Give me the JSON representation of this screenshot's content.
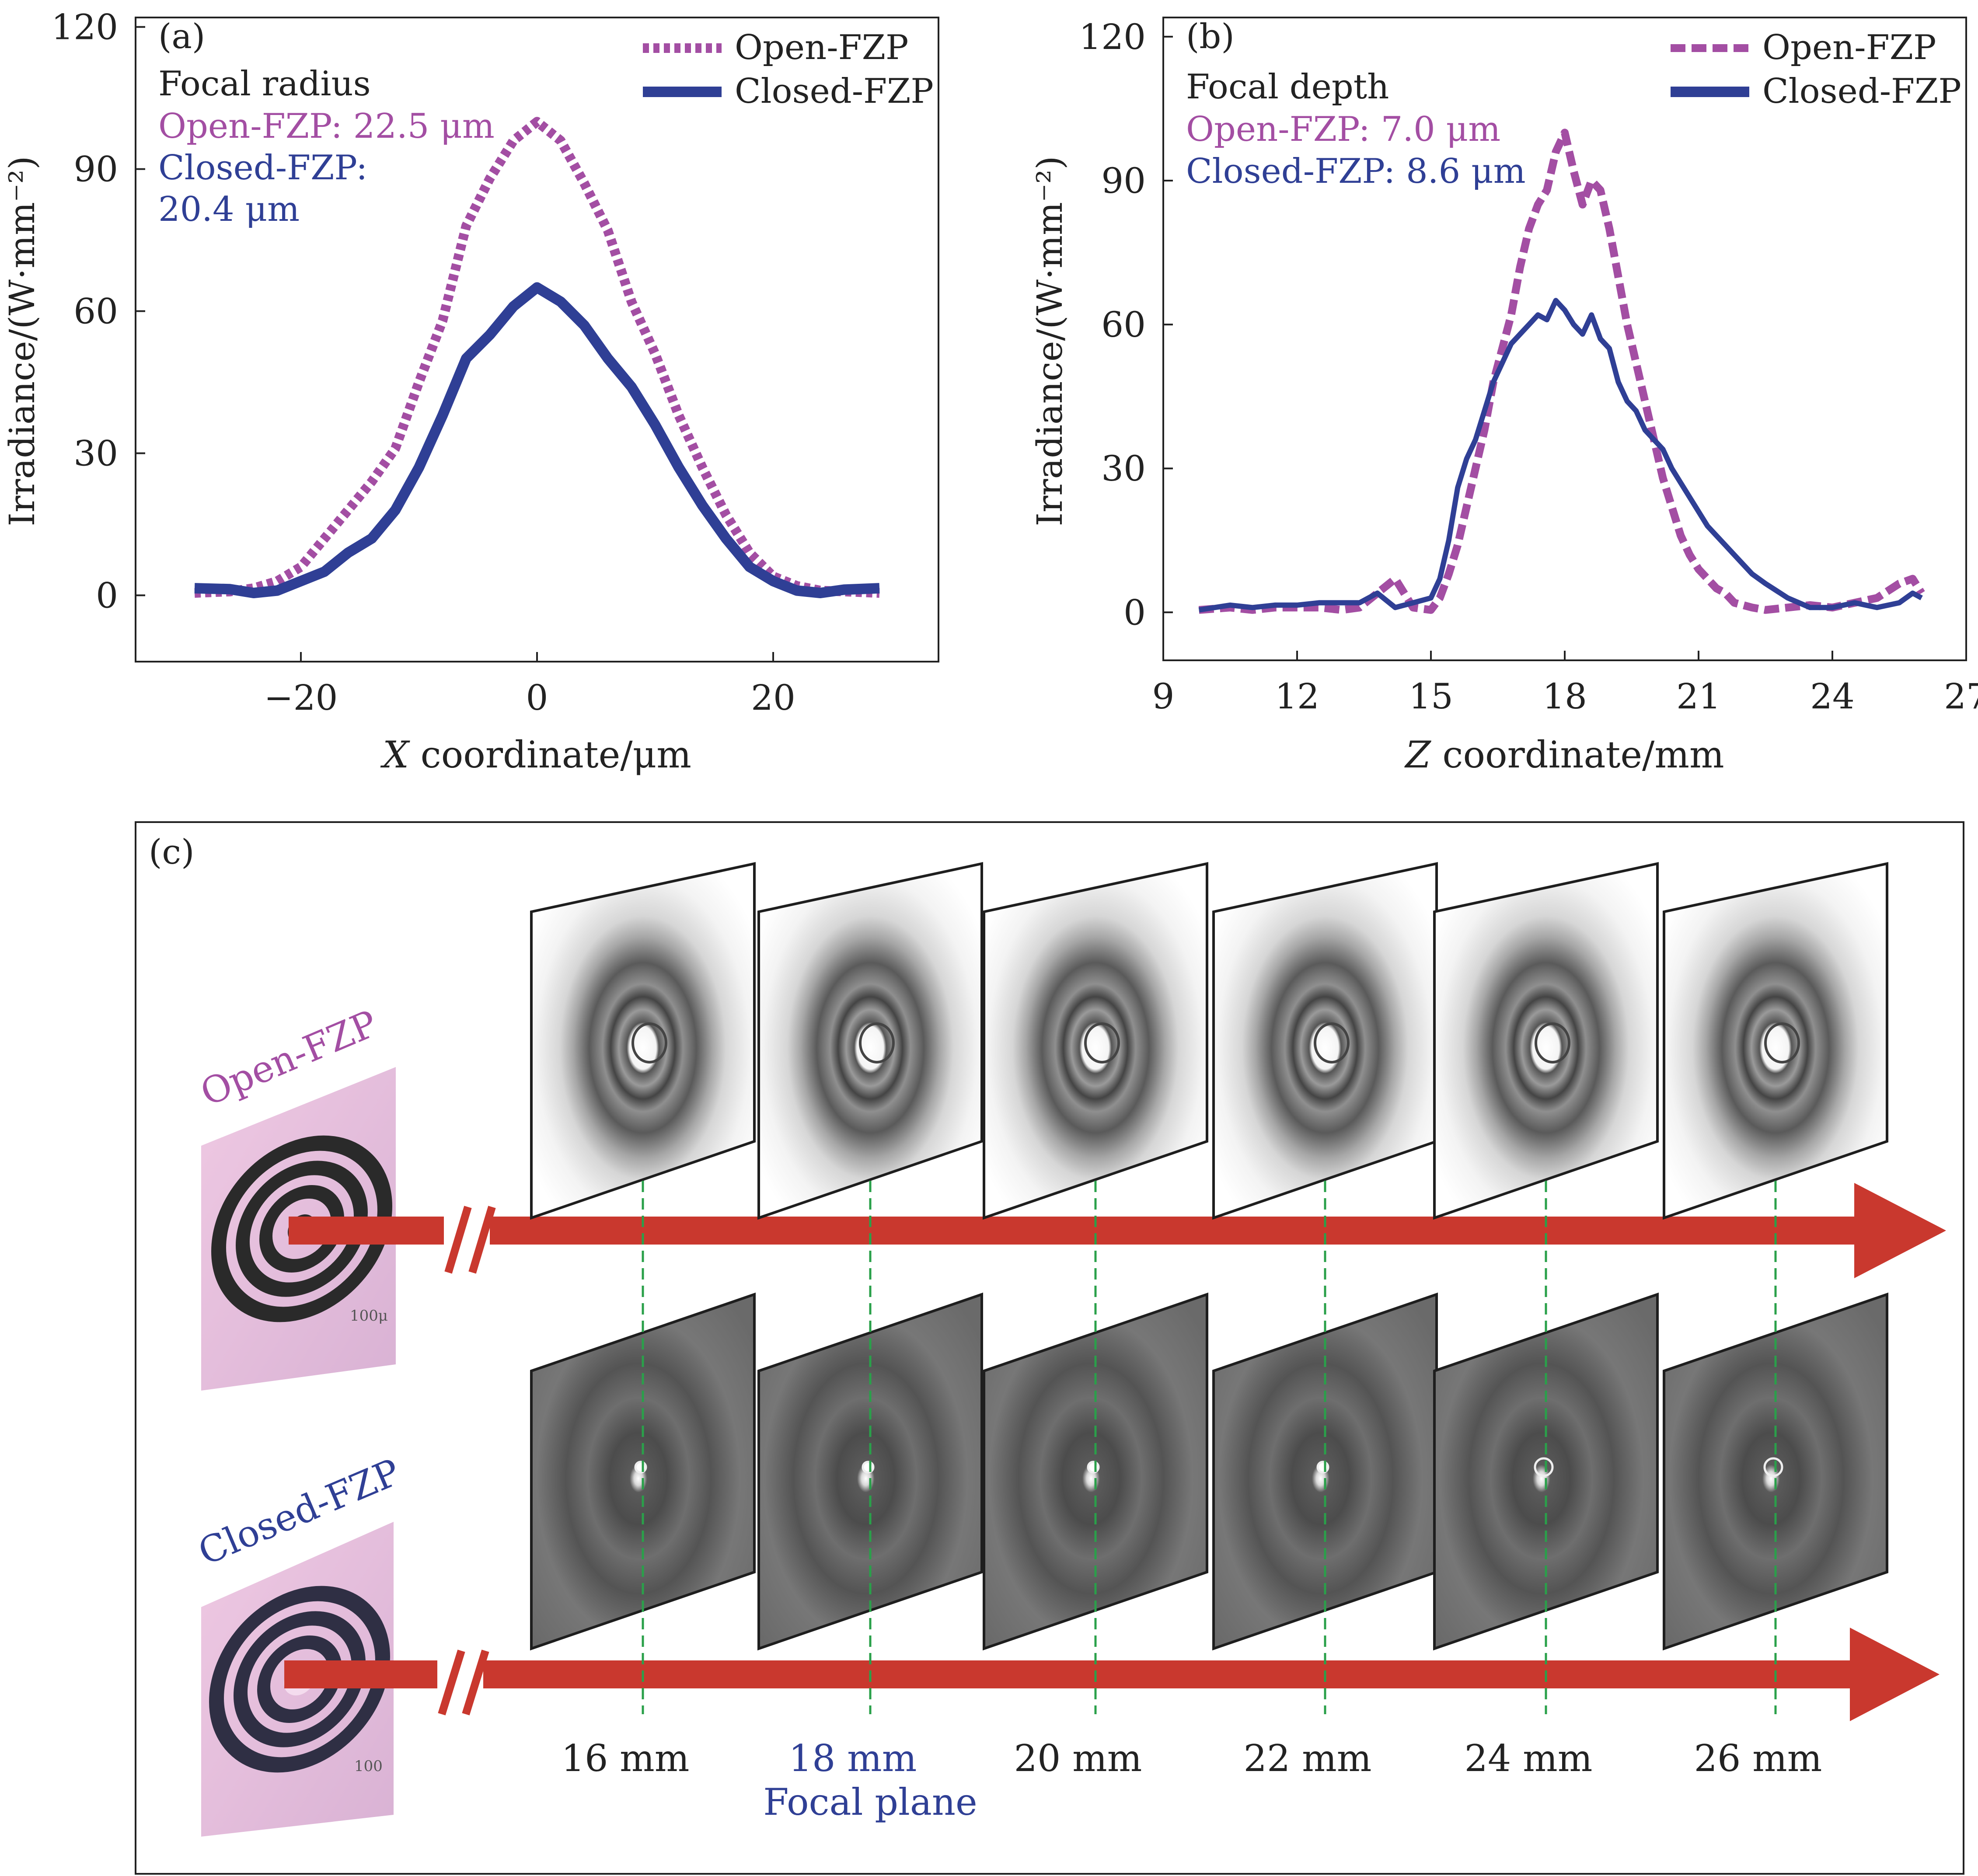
{
  "colors": {
    "open": "#a34ea3",
    "closed": "#2f3f95",
    "arrow": "#c9382e",
    "guide": "#2aa04a",
    "axis": "#222222",
    "focal_label": "#2f3f95"
  },
  "chart_data": [
    {
      "type": "line",
      "panel": "(a)",
      "title": "",
      "xlabel_italic": "X",
      "xlabel_rest": " coordinate/μm",
      "ylabel": "Irradiance/(W·mm⁻²)",
      "xlim": [
        -34,
        34
      ],
      "ylim": [
        -14,
        122
      ],
      "xticks": [
        -20,
        0,
        20
      ],
      "yticks": [
        0,
        30,
        60,
        90,
        120
      ],
      "legend": {
        "position": "top-right",
        "entries": [
          "Open-FZP",
          "Closed-FZP"
        ]
      },
      "annotation": {
        "heading": "Focal radius",
        "open_text": "Open-FZP: 22.5 μm",
        "closed_text_1": "Closed-FZP:",
        "closed_text_2": "20.4 μm"
      },
      "series": [
        {
          "name": "Open-FZP",
          "style": "dotted",
          "x": [
            -29,
            -26,
            -24,
            -22,
            -20,
            -18,
            -16,
            -14,
            -12,
            -10,
            -8,
            -6,
            -4,
            -2,
            0,
            2,
            4,
            6,
            8,
            10,
            12,
            14,
            16,
            18,
            20,
            22,
            24,
            26,
            29
          ],
          "y": [
            0.5,
            0.8,
            1.5,
            3,
            6,
            12,
            18,
            24,
            31,
            45,
            58,
            78,
            88,
            96,
            100,
            96,
            87,
            77,
            62,
            51,
            38,
            27,
            17,
            9,
            4,
            2,
            1,
            0.8,
            0.5
          ]
        },
        {
          "name": "Closed-FZP",
          "style": "solid",
          "x": [
            -29,
            -26,
            -24,
            -22,
            -20,
            -18,
            -16,
            -14,
            -12,
            -10,
            -8,
            -6,
            -4,
            -2,
            0,
            2,
            4,
            6,
            8,
            10,
            12,
            14,
            16,
            18,
            20,
            22,
            24,
            26,
            29
          ],
          "y": [
            1.5,
            1.3,
            0.5,
            1,
            3,
            5,
            9,
            12,
            18,
            27,
            38,
            50,
            55,
            61,
            65,
            62,
            57,
            50,
            44,
            36,
            27,
            19,
            12,
            6,
            3,
            1,
            0.5,
            1.2,
            1.5
          ]
        }
      ]
    },
    {
      "type": "line",
      "panel": "(b)",
      "title": "",
      "xlabel_italic": "Z",
      "xlabel_rest": " coordinate/mm",
      "ylabel": "Irradiance/(W·mm⁻²)",
      "xlim": [
        9,
        27
      ],
      "ylim": [
        -10,
        124
      ],
      "xticks": [
        9,
        12,
        15,
        18,
        21,
        24,
        27
      ],
      "yticks": [
        0,
        30,
        60,
        90,
        120
      ],
      "legend": {
        "position": "top-right",
        "entries": [
          "Open-FZP",
          "Closed-FZP"
        ]
      },
      "annotation": {
        "heading": "Focal depth",
        "open_text": "Open-FZP: 7.0 μm",
        "closed_text": "Closed-FZP: 8.6 μm"
      },
      "series": [
        {
          "name": "Open-FZP",
          "style": "dashed",
          "x": [
            9.8,
            10.5,
            11,
            11.5,
            12,
            12.5,
            13,
            13.4,
            13.8,
            14.2,
            14.6,
            15.0,
            15.2,
            15.4,
            15.6,
            15.8,
            16.0,
            16.2,
            16.4,
            16.6,
            16.8,
            17.0,
            17.2,
            17.4,
            17.6,
            17.8,
            18.0,
            18.2,
            18.4,
            18.6,
            18.8,
            19.0,
            19.2,
            19.4,
            19.6,
            19.8,
            20.0,
            20.2,
            20.4,
            20.6,
            20.8,
            21.0,
            21.2,
            21.4,
            21.6,
            21.8,
            22.0,
            22.2,
            22.5,
            23,
            23.5,
            24,
            24.5,
            25,
            25.5,
            25.8,
            26.0
          ],
          "y": [
            0.5,
            1,
            0.5,
            1,
            1,
            1,
            0.5,
            1,
            4,
            7,
            1,
            0.5,
            3,
            8,
            14,
            22,
            30,
            38,
            48,
            55,
            62,
            72,
            80,
            85,
            88,
            96,
            100,
            92,
            85,
            90,
            88,
            80,
            70,
            60,
            52,
            44,
            36,
            28,
            22,
            16,
            12,
            9,
            7,
            5,
            4,
            2,
            1.5,
            1,
            0.5,
            1,
            1.5,
            1,
            2,
            3,
            6,
            7,
            4
          ]
        },
        {
          "name": "Closed-FZP",
          "style": "solid",
          "x": [
            9.8,
            10.5,
            11,
            11.5,
            12,
            12.5,
            13,
            13.4,
            13.8,
            14.2,
            14.6,
            15.0,
            15.2,
            15.4,
            15.6,
            15.8,
            16.0,
            16.2,
            16.4,
            16.6,
            16.8,
            17.0,
            17.2,
            17.4,
            17.6,
            17.8,
            18.0,
            18.2,
            18.4,
            18.6,
            18.8,
            19.0,
            19.2,
            19.4,
            19.6,
            19.8,
            20.0,
            20.2,
            20.4,
            20.6,
            20.8,
            21.0,
            21.2,
            21.4,
            21.6,
            21.8,
            22.0,
            22.2,
            22.5,
            23,
            23.5,
            24,
            24.5,
            25,
            25.5,
            25.8,
            26.0
          ],
          "y": [
            0.5,
            1.5,
            1,
            1.5,
            1.5,
            2,
            2,
            2,
            4,
            1,
            2,
            3,
            7,
            15,
            26,
            32,
            36,
            42,
            48,
            52,
            56,
            58,
            60,
            62,
            61,
            65,
            63,
            60,
            58,
            62,
            57,
            55,
            48,
            44,
            42,
            38,
            36,
            34,
            30,
            27,
            24,
            21,
            18,
            16,
            14,
            12,
            10,
            8,
            6,
            3,
            1,
            1,
            2,
            1,
            2,
            4,
            3
          ]
        }
      ]
    }
  ],
  "panel_c": {
    "label": "(c)",
    "open_label": "Open-FZP",
    "closed_label": "Closed-FZP",
    "scale_open": "100μ",
    "scale_closed": "100",
    "positions": [
      "16 mm",
      "18 mm",
      "20 mm",
      "22 mm",
      "24 mm",
      "26 mm"
    ],
    "focal_index": 1,
    "focal_plane_label": "Focal plane"
  }
}
